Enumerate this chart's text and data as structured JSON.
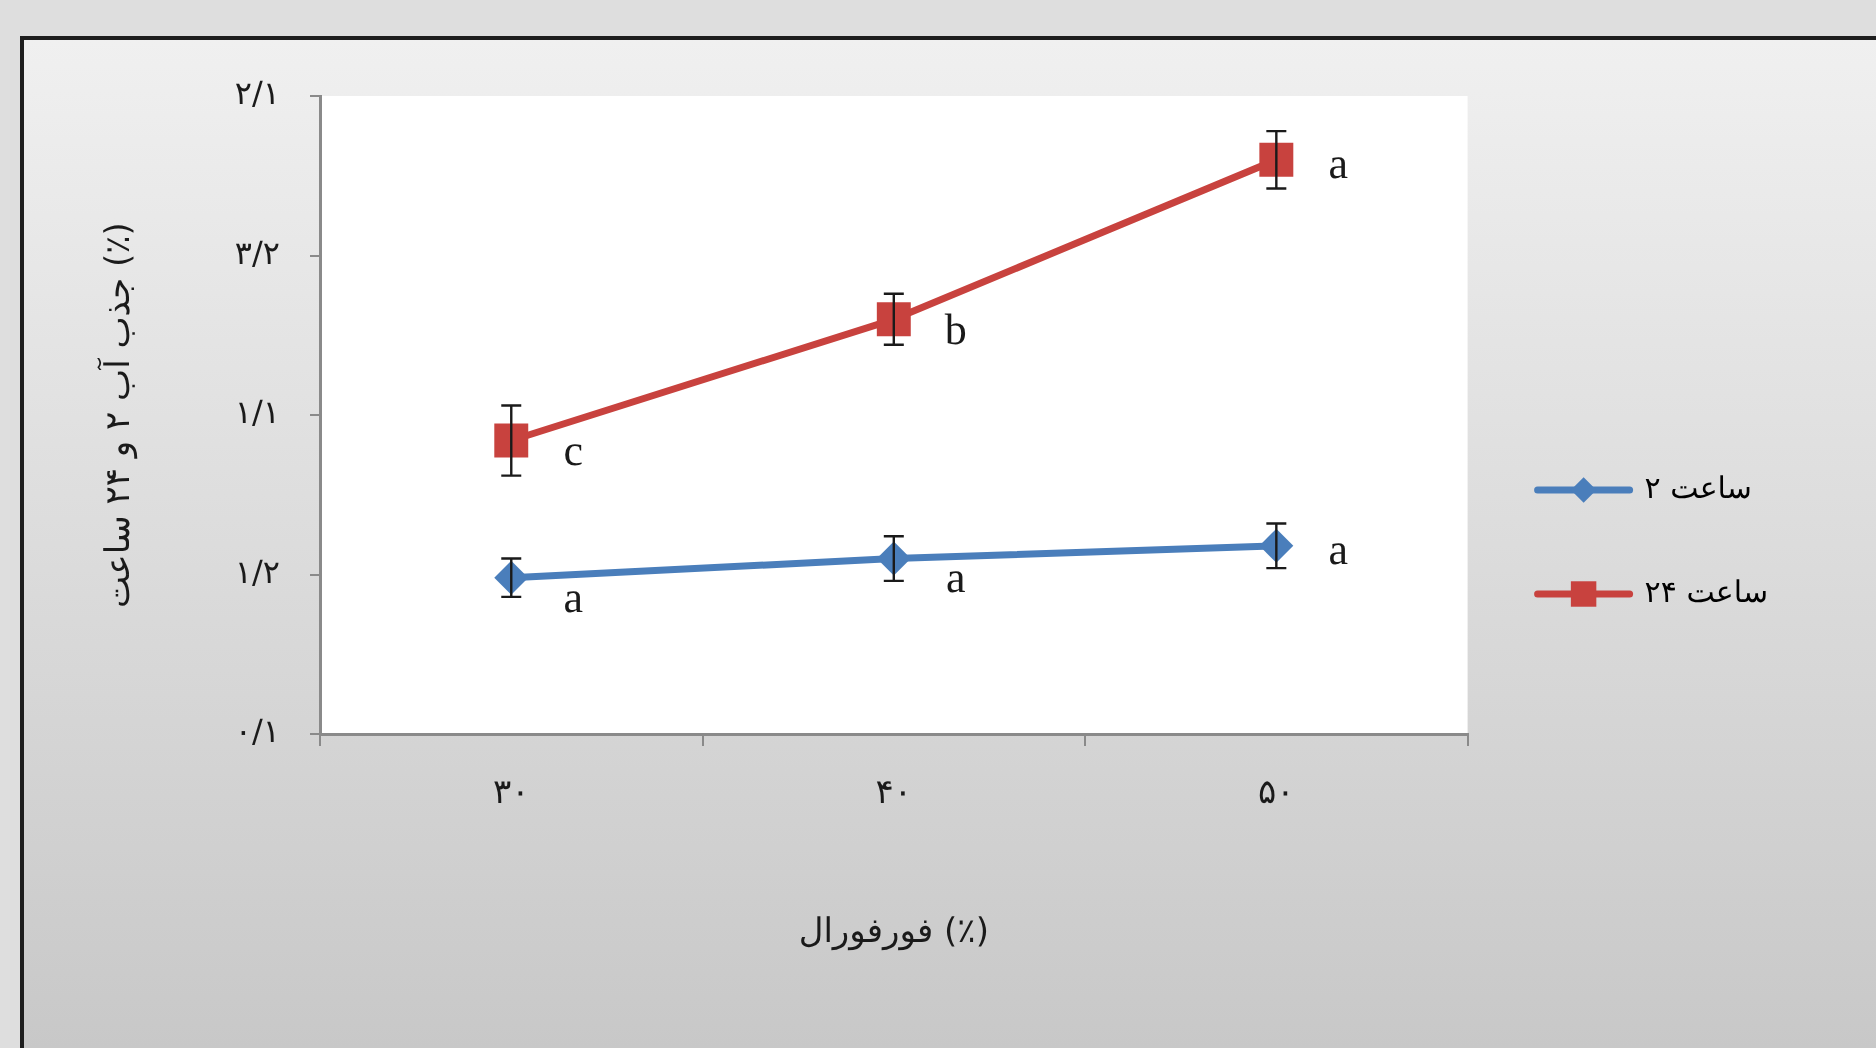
{
  "chart_data": {
    "type": "line",
    "xlabel": "فورفورال (٪)",
    "ylabel": "جذب آب ۲ و ۲۴ ساعت (٪)",
    "categories": [
      "۳۰",
      "۴۰",
      "۵۰"
    ],
    "series": [
      {
        "name": "۲ ساعت",
        "color": "#4a7ebb",
        "marker": "diamond",
        "values": [
          0.49,
          0.55,
          0.59
        ],
        "errors": [
          0.06,
          0.07,
          0.07
        ]
      },
      {
        "name": "۲۴ ساعت",
        "color": "#c8423e",
        "marker": "square",
        "values": [
          0.92,
          1.3,
          1.8
        ],
        "errors": [
          0.11,
          0.08,
          0.09
        ]
      }
    ],
    "ylim": [
      0,
      2
    ],
    "yticks": [
      {
        "value": 0,
        "label": "۰/۱"
      },
      {
        "value": 0.5,
        "label": "۱/۲"
      },
      {
        "value": 1,
        "label": "۱/۱"
      },
      {
        "value": 1.5,
        "label": "۳/۲"
      },
      {
        "value": 2,
        "label": "۲/۱"
      }
    ],
    "grid": false,
    "legend": "right",
    "annotations": [
      {
        "text": "a",
        "x": "۳۰",
        "y": 0.42
      },
      {
        "text": "a",
        "x": "۴۰",
        "y": 0.48
      },
      {
        "text": "a",
        "x": "۵۰",
        "y": 0.57
      },
      {
        "text": "c",
        "x": "۳۰",
        "y": 0.88
      },
      {
        "text": "b",
        "x": "۴۰",
        "y": 1.26
      },
      {
        "text": "a",
        "x": "۵۰",
        "y": 1.78
      }
    ]
  }
}
